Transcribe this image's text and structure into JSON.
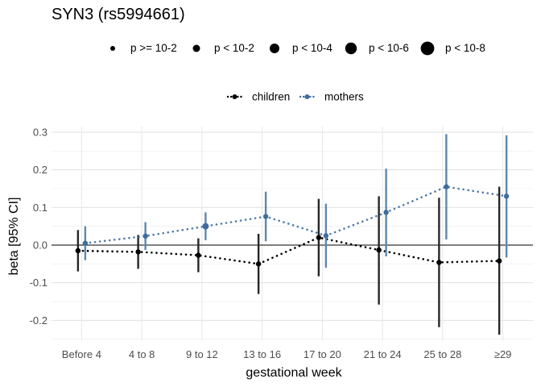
{
  "chart_data": {
    "type": "scatter",
    "title": "SYN3 (rs5994661)",
    "xlabel": "gestational week",
    "ylabel": "beta [95% CI]",
    "categories": [
      "Before 4",
      "4 to 8",
      "9 to 12",
      "13 to 16",
      "17 to 20",
      "21 to 24",
      "25 to 28",
      "≥29"
    ],
    "ylim": [
      -0.255,
      0.315
    ],
    "yticks": [
      -0.2,
      -0.1,
      0.0,
      0.1,
      0.2,
      0.3
    ],
    "ytick_labels": [
      "-0.2",
      "-0.1",
      "0.0",
      "0.1",
      "0.2",
      "0.3"
    ],
    "grid": true,
    "zero_line": true,
    "size_legend": {
      "title": "",
      "entries": [
        {
          "label": "p >= 10-2",
          "level": 1
        },
        {
          "label": "p < 10-2",
          "level": 2
        },
        {
          "label": "p < 10-4",
          "level": 3
        },
        {
          "label": "p < 10-6",
          "level": 4
        },
        {
          "label": "p < 10-8",
          "level": 5
        }
      ]
    },
    "series": [
      {
        "name": "children",
        "color": "#000000",
        "bar_color": "#262626",
        "values": [
          -0.015,
          -0.018,
          -0.027,
          -0.05,
          0.02,
          -0.013,
          -0.046,
          -0.042
        ],
        "lower": [
          -0.07,
          -0.063,
          -0.072,
          -0.13,
          -0.083,
          -0.158,
          -0.218,
          -0.238
        ],
        "upper": [
          0.04,
          0.027,
          0.018,
          0.03,
          0.123,
          0.13,
          0.126,
          0.155
        ],
        "p_level": [
          1,
          1,
          1,
          1,
          1,
          1,
          1,
          1
        ]
      },
      {
        "name": "mothers",
        "color": "#3d6d9e",
        "bar_color": "#5f86ad",
        "values": [
          0.005,
          0.024,
          0.05,
          0.076,
          0.025,
          0.087,
          0.155,
          0.13
        ],
        "lower": [
          -0.04,
          -0.013,
          0.013,
          0.01,
          -0.06,
          -0.03,
          0.015,
          -0.033
        ],
        "upper": [
          0.05,
          0.061,
          0.087,
          0.142,
          0.11,
          0.203,
          0.295,
          0.292
        ],
        "p_level": [
          1,
          1,
          2,
          1,
          1,
          1,
          1,
          1
        ]
      }
    ],
    "legend": {
      "placement": "top"
    }
  }
}
